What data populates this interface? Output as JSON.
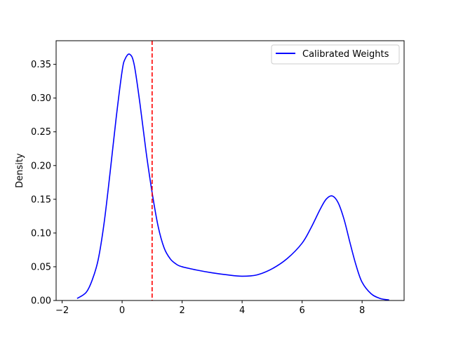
{
  "chart_data": {
    "type": "line",
    "title": "",
    "xlabel": "",
    "ylabel": "Density",
    "xlim": [
      -2.2,
      9.4
    ],
    "ylim": [
      0,
      0.385
    ],
    "xticks": [
      -2,
      0,
      2,
      4,
      6,
      8
    ],
    "yticks": [
      0.0,
      0.05,
      0.1,
      0.15,
      0.2,
      0.25,
      0.3,
      0.35
    ],
    "ytick_labels": [
      "0.00",
      "0.05",
      "0.10",
      "0.15",
      "0.20",
      "0.25",
      "0.30",
      "0.35"
    ],
    "xtick_labels": [
      "−2",
      "0",
      "2",
      "4",
      "6",
      "8"
    ],
    "grid": false,
    "legend_position": "top-right",
    "series": [
      {
        "name": "Calibrated Weights",
        "color": "#0000ff",
        "x": [
          -1.5,
          -1.2,
          -1.0,
          -0.8,
          -0.6,
          -0.4,
          -0.2,
          0.0,
          0.1,
          0.25,
          0.4,
          0.6,
          0.8,
          1.0,
          1.2,
          1.4,
          1.6,
          1.8,
          2.0,
          2.5,
          3.0,
          3.5,
          4.0,
          4.5,
          5.0,
          5.5,
          6.0,
          6.3,
          6.6,
          6.8,
          7.0,
          7.2,
          7.4,
          7.6,
          7.8,
          8.0,
          8.3,
          8.6,
          8.9
        ],
        "y": [
          0.003,
          0.012,
          0.03,
          0.06,
          0.115,
          0.19,
          0.27,
          0.34,
          0.358,
          0.365,
          0.35,
          0.29,
          0.22,
          0.16,
          0.11,
          0.078,
          0.062,
          0.054,
          0.05,
          0.045,
          0.041,
          0.038,
          0.036,
          0.038,
          0.047,
          0.062,
          0.085,
          0.108,
          0.135,
          0.15,
          0.155,
          0.145,
          0.12,
          0.085,
          0.052,
          0.027,
          0.01,
          0.003,
          0.0008
        ]
      }
    ],
    "reference_line": {
      "x": 1.0,
      "color": "#ff0000",
      "style": "dashed"
    }
  }
}
